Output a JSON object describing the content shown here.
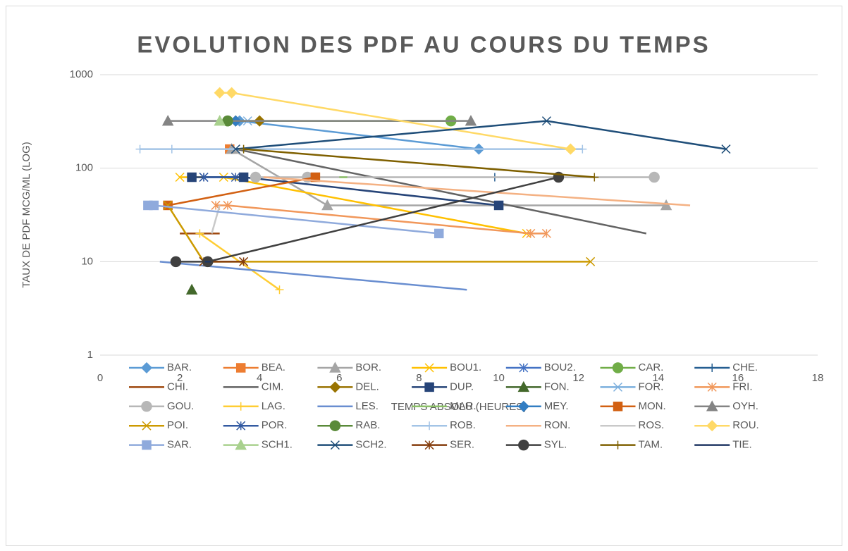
{
  "chart_data": {
    "type": "line",
    "title": "EVOLUTION DES PDF AU COURS DU TEMPS",
    "x_label": "TEMPS ABSOLU (HEURES)",
    "y_label": "TAUX DE PDF MCG/ML  (LOG)",
    "xlim": [
      0,
      18
    ],
    "xticks": [
      0,
      2,
      4,
      6,
      8,
      10,
      12,
      14,
      16,
      18
    ],
    "ylim": [
      1,
      1000
    ],
    "yticks": [
      1,
      10,
      100,
      1000
    ],
    "log_y": true,
    "grid": true,
    "legend": "bottom",
    "series": [
      {
        "name": "BAR.",
        "color": "#5b9bd5",
        "marker": "diamond",
        "x": [
          3.5,
          9.5
        ],
        "values": [
          320,
          160
        ]
      },
      {
        "name": "BEA.",
        "color": "#ed7d31",
        "marker": "square",
        "x": [
          3.25
        ],
        "values": [
          160
        ]
      },
      {
        "name": "BOR.",
        "color": "#a5a5a5",
        "marker": "triangle",
        "x": [
          3.3,
          5.7,
          14.2
        ],
        "values": [
          160,
          40,
          40
        ]
      },
      {
        "name": "BOU1.",
        "color": "#ffc000",
        "marker": "x",
        "x": [
          2,
          3.1,
          10.7
        ],
        "values": [
          80,
          80,
          20
        ]
      },
      {
        "name": "BOU2.",
        "color": "#4472c4",
        "marker": "star",
        "x": [
          2.6,
          3.6
        ],
        "values": [
          80,
          80
        ]
      },
      {
        "name": "CAR.",
        "color": "#70ad47",
        "marker": "circle",
        "x": [
          3.2,
          8.8
        ],
        "values": [
          320,
          320
        ]
      },
      {
        "name": "CHE.",
        "color": "#255e91",
        "marker": "plus",
        "x": [
          9.9
        ],
        "values": [
          80
        ]
      },
      {
        "name": "CHI.",
        "color": "#9e480e",
        "marker": "none",
        "x": [
          2,
          3
        ],
        "values": [
          20,
          20
        ]
      },
      {
        "name": "CIM.",
        "color": "#636363",
        "marker": "none",
        "x": [
          3.4,
          13.7
        ],
        "values": [
          160,
          20
        ]
      },
      {
        "name": "DEL.",
        "color": "#997300",
        "marker": "diamond",
        "x": [
          3.4,
          4
        ],
        "values": [
          320,
          320
        ]
      },
      {
        "name": "DUP.",
        "color": "#264478",
        "marker": "square",
        "x": [
          2.3,
          3.6,
          10
        ],
        "values": [
          80,
          80,
          40
        ]
      },
      {
        "name": "FON.",
        "color": "#43682b",
        "marker": "triangle",
        "x": [
          2.3
        ],
        "values": [
          5
        ]
      },
      {
        "name": "FOR.",
        "color": "#7cafdd",
        "marker": "x",
        "x": [
          3.7
        ],
        "values": [
          320
        ]
      },
      {
        "name": "FRI.",
        "color": "#f1975a",
        "marker": "star",
        "x": [
          2.9,
          3.2,
          10.8,
          11.2
        ],
        "values": [
          40,
          40,
          20,
          20
        ]
      },
      {
        "name": "GOU.",
        "color": "#b7b7b7",
        "marker": "circle",
        "x": [
          3.9,
          5.2,
          13.9
        ],
        "values": [
          80,
          80,
          80
        ]
      },
      {
        "name": "LAG.",
        "color": "#ffcd33",
        "marker": "plus",
        "x": [
          2.5,
          4.5
        ],
        "values": [
          20,
          5
        ]
      },
      {
        "name": "LES.",
        "color": "#698ed0",
        "marker": "none",
        "x": [
          1.5,
          9.2
        ],
        "values": [
          10,
          5
        ]
      },
      {
        "name": "MAR.",
        "color": "#8cc168",
        "marker": "none",
        "x": [
          6,
          6.2
        ],
        "values": [
          80,
          80
        ]
      },
      {
        "name": "MEY.",
        "color": "#327dc2",
        "marker": "diamond",
        "x": [
          3.4
        ],
        "values": [
          320
        ]
      },
      {
        "name": "MON.",
        "color": "#d26012",
        "marker": "square",
        "x": [
          1.7,
          5.4
        ],
        "values": [
          40,
          80
        ]
      },
      {
        "name": "OYH.",
        "color": "#848484",
        "marker": "triangle",
        "x": [
          1.7,
          9.3
        ],
        "values": [
          320,
          320
        ]
      },
      {
        "name": "POI.",
        "color": "#cc9a00",
        "marker": "x",
        "x": [
          1.7,
          2.6,
          12.3
        ],
        "values": [
          40,
          10,
          10
        ]
      },
      {
        "name": "POR.",
        "color": "#335aa1",
        "marker": "star",
        "x": [
          2.6,
          3.4
        ],
        "values": [
          80,
          80
        ]
      },
      {
        "name": "RAB.",
        "color": "#5a8a39",
        "marker": "circle",
        "x": [
          3.2
        ],
        "values": [
          320
        ]
      },
      {
        "name": "ROB.",
        "color": "#a3c4e6",
        "marker": "plus",
        "x": [
          1,
          1.8,
          12.1
        ],
        "values": [
          160,
          160,
          160
        ]
      },
      {
        "name": "RON.",
        "color": "#f4b183",
        "marker": "none",
        "x": [
          4.1,
          14.8
        ],
        "values": [
          80,
          40
        ]
      },
      {
        "name": "ROS.",
        "color": "#c9c9c9",
        "marker": "none",
        "x": [
          2.8,
          3
        ],
        "values": [
          20,
          40
        ]
      },
      {
        "name": "ROU.",
        "color": "#ffd966",
        "marker": "diamond",
        "x": [
          3,
          3.3,
          11.8
        ],
        "values": [
          640,
          640,
          160
        ]
      },
      {
        "name": "SAR.",
        "color": "#8faadc",
        "marker": "square",
        "x": [
          1.2,
          1.35,
          8.5
        ],
        "values": [
          40,
          40,
          20
        ]
      },
      {
        "name": "SCH1.",
        "color": "#a9d18e",
        "marker": "triangle",
        "x": [
          3
        ],
        "values": [
          320
        ]
      },
      {
        "name": "SCH2.",
        "color": "#1f4e79",
        "marker": "x",
        "x": [
          3.4,
          11.2,
          15.7
        ],
        "values": [
          160,
          320,
          160
        ]
      },
      {
        "name": "SER.",
        "color": "#843c0c",
        "marker": "star",
        "x": [
          2.6,
          3.6
        ],
        "values": [
          10,
          10
        ]
      },
      {
        "name": "SYL.",
        "color": "#404040",
        "marker": "circle",
        "x": [
          1.9,
          2.7,
          11.5
        ],
        "values": [
          10,
          10,
          80
        ]
      },
      {
        "name": "TAM.",
        "color": "#7f6000",
        "marker": "plus",
        "x": [
          3.6,
          12.4
        ],
        "values": [
          160,
          80
        ]
      },
      {
        "name": "TIE.",
        "color": "#203864",
        "marker": "none",
        "x": [
          2.7
        ],
        "values": [
          10
        ]
      }
    ]
  }
}
